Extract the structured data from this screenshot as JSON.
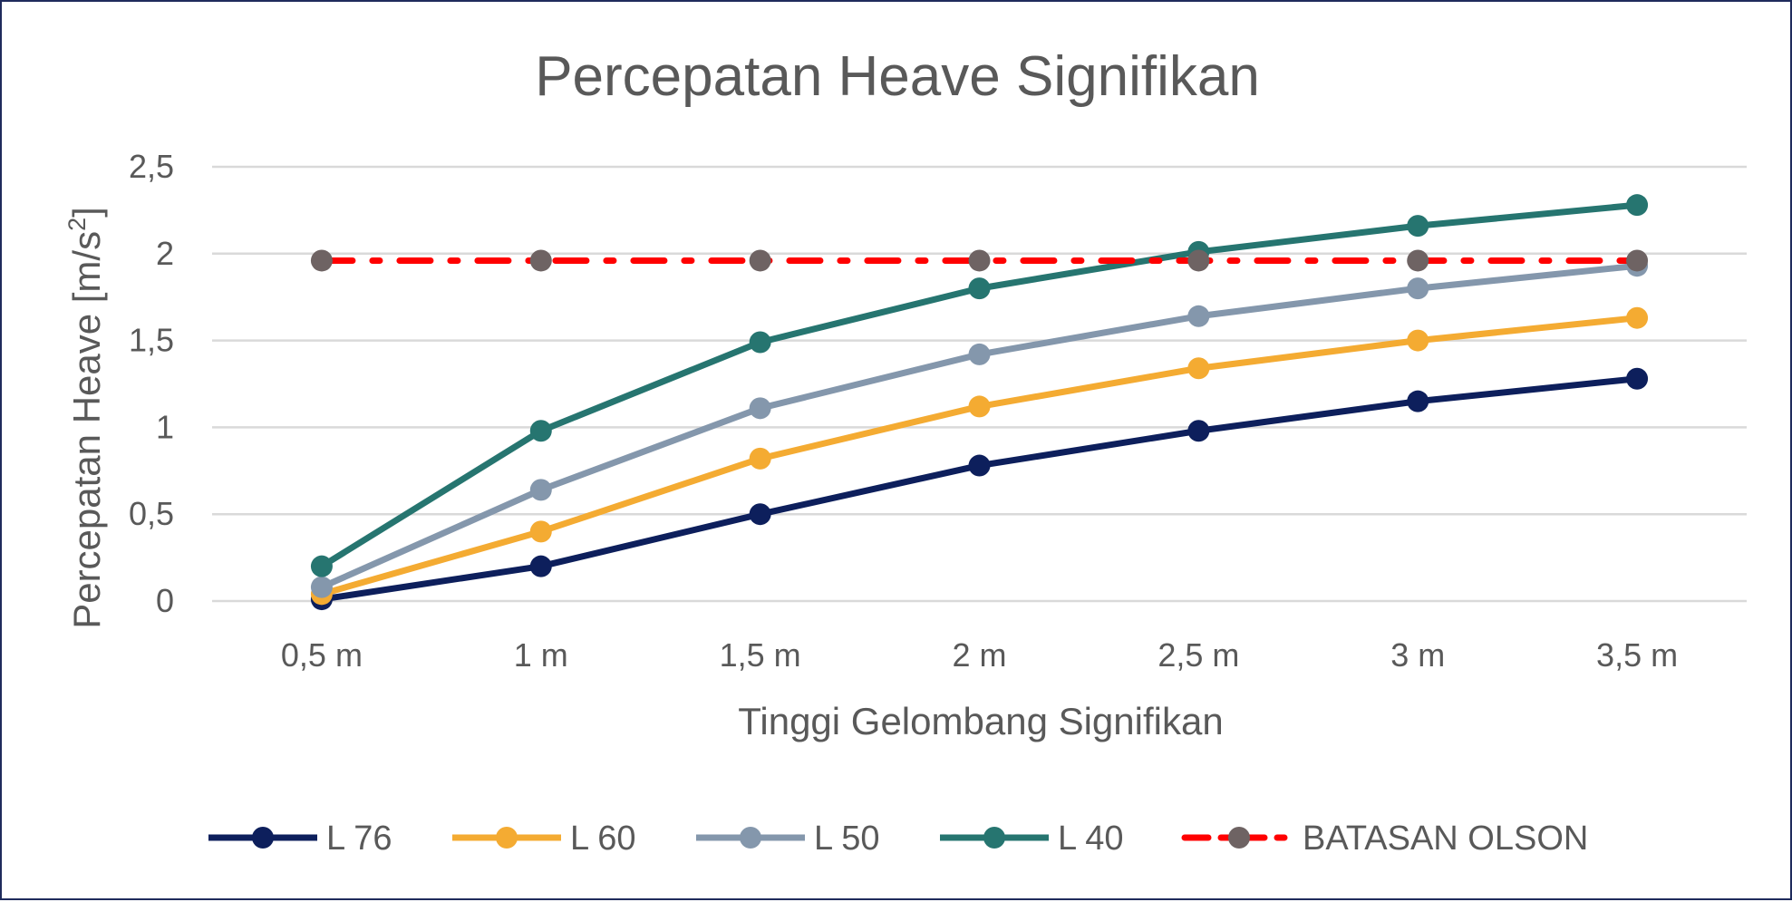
{
  "chart_data": {
    "type": "line",
    "title": "Percepatan Heave Signifikan",
    "xlabel": "Tinggi Gelombang Signifikan",
    "ylabel_main": "Percepatan Heave [m/s",
    "ylabel_sup": "2",
    "ylabel_end": "]",
    "categories": [
      "0,5 m",
      "1 m",
      "1,5 m",
      "2 m",
      "2,5 m",
      "3 m",
      "3,5 m"
    ],
    "ylim": [
      0,
      2.5
    ],
    "yticks": [
      0,
      0.5,
      1,
      1.5,
      2,
      2.5
    ],
    "ytick_labels": [
      "0",
      "0,5",
      "1",
      "1,5",
      "2",
      "2,5"
    ],
    "grid": true,
    "legend_position": "bottom",
    "series": [
      {
        "name": "L 76",
        "color": "#0d1f5c",
        "style": "solid",
        "values": [
          0.01,
          0.2,
          0.5,
          0.78,
          0.98,
          1.15,
          1.28
        ]
      },
      {
        "name": "L 60",
        "color": "#f4ab32",
        "style": "solid",
        "values": [
          0.04,
          0.4,
          0.82,
          1.12,
          1.34,
          1.5,
          1.63
        ]
      },
      {
        "name": "L 50",
        "color": "#8497ac",
        "style": "solid",
        "values": [
          0.08,
          0.64,
          1.11,
          1.42,
          1.64,
          1.8,
          1.93
        ]
      },
      {
        "name": "L 40",
        "color": "#267570",
        "style": "solid",
        "values": [
          0.2,
          0.98,
          1.49,
          1.8,
          2.01,
          2.16,
          2.28
        ]
      },
      {
        "name": "BATASAN OLSON",
        "color": "#ff0000",
        "marker_color": "#6e6363",
        "style": "dashdot",
        "values": [
          1.96,
          1.96,
          1.96,
          1.96,
          1.96,
          1.96,
          1.96
        ]
      }
    ]
  }
}
